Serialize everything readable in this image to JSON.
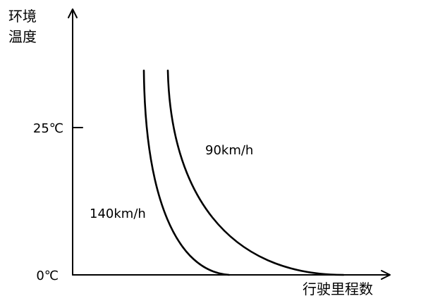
{
  "y_axis": {
    "label_line1": "环境",
    "label_line2": "温度",
    "ticks": [
      "25℃",
      "0℃"
    ]
  },
  "x_axis": {
    "label": "行驶里程数"
  },
  "curves": {
    "fast_label": "140km/h",
    "slow_label": "90km/h"
  }
}
